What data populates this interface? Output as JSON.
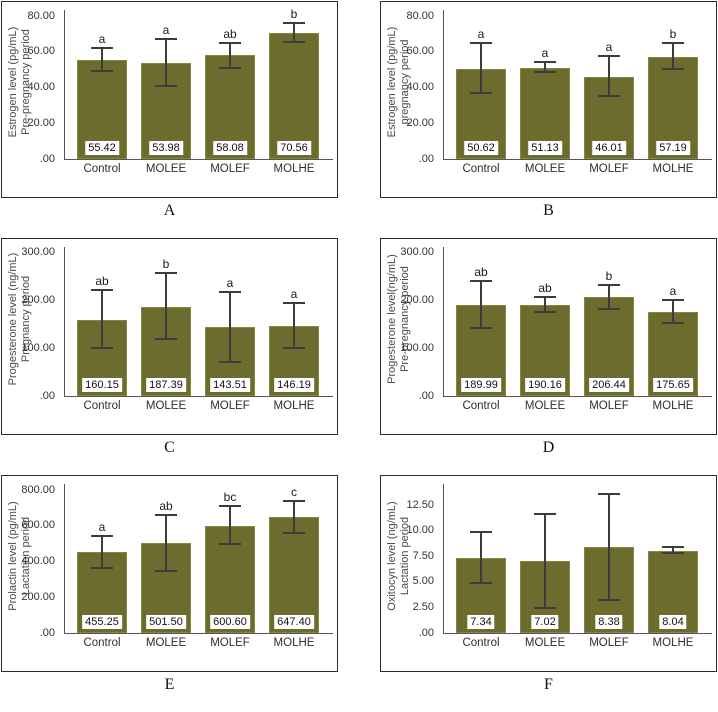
{
  "figure": {
    "bar_color": "#6b6c2e",
    "bar_border_color": "#85873f",
    "error_bar_color": "#3c3c3c",
    "axis_color": "#555555",
    "panel_border_color": "#2b2b2b",
    "value_label_bg": "#ffffff",
    "grid": false,
    "legend": false,
    "panel_letters": [
      "A",
      "B",
      "C",
      "D",
      "E",
      "F"
    ]
  },
  "chart_data": [
    {
      "type": "bar",
      "panel": "A",
      "title": "",
      "xlabel": "",
      "ylabel": "Estrogen level (pg/mL) Pre-pregnancy period",
      "ylabel_lines": [
        "Estrogen level (pg/mL)",
        "Pre-pregnancy period"
      ],
      "categories": [
        "Control",
        "MOLEE",
        "MOLEF",
        "MOLHE"
      ],
      "values": [
        55.42,
        53.98,
        58.08,
        70.56
      ],
      "value_labels": [
        "55.42",
        "53.98",
        "58.08",
        "70.56"
      ],
      "sig_letters": [
        "a",
        "a",
        "ab",
        "b"
      ],
      "error_low": [
        49.5,
        41.0,
        51.0,
        65.5
      ],
      "error_high": [
        62.0,
        67.0,
        65.0,
        76.0
      ],
      "ytick_labels": [
        ".00",
        "20.00",
        "40.00",
        "60.00",
        "80.00"
      ],
      "ytick_values": [
        0,
        20,
        40,
        60,
        80
      ],
      "ylim": [
        0,
        83.5
      ]
    },
    {
      "type": "bar",
      "panel": "B",
      "title": "",
      "xlabel": "",
      "ylabel": "Estrogen level (pg/mL) pregnancy period",
      "ylabel_lines": [
        "Estrogen level (pg/mL)",
        "pregnancy period"
      ],
      "categories": [
        "Control",
        "MOLEE",
        "MOLEF",
        "MOLHE"
      ],
      "values": [
        50.62,
        51.13,
        46.01,
        57.19
      ],
      "value_labels": [
        "50.62",
        "51.13",
        "46.01",
        "57.19"
      ],
      "sig_letters": [
        "a",
        "a",
        "a",
        "b"
      ],
      "error_low": [
        37.0,
        48.5,
        35.5,
        50.5
      ],
      "error_high": [
        65.0,
        54.5,
        57.5,
        65.0
      ],
      "ytick_labels": [
        ".00",
        "20.00",
        "40.00",
        "60.00",
        "80.00"
      ],
      "ytick_values": [
        0,
        20,
        40,
        60,
        80
      ],
      "ylim": [
        0,
        83.5
      ]
    },
    {
      "type": "bar",
      "panel": "C",
      "title": "",
      "xlabel": "",
      "ylabel": "Progesterone level (ng/mL) Pregnancy period",
      "ylabel_lines": [
        "Progesterone level (ng/mL)",
        "Pregnancy period"
      ],
      "categories": [
        "Control",
        "MOLEE",
        "MOLEF",
        "MOLHE"
      ],
      "values": [
        160.15,
        187.39,
        143.51,
        146.19
      ],
      "value_labels": [
        "160.15",
        "187.39",
        "143.51",
        "146.19"
      ],
      "sig_letters": [
        "ab",
        "b",
        "a",
        "a"
      ],
      "error_low": [
        100.0,
        120.0,
        72.0,
        100.0
      ],
      "error_high": [
        222.0,
        257.0,
        217.0,
        194.0
      ],
      "ytick_labels": [
        ".00",
        "100.00",
        "200.00",
        "300.00"
      ],
      "ytick_values": [
        0,
        100,
        200,
        300
      ],
      "ylim": [
        0,
        312
      ]
    },
    {
      "type": "bar",
      "panel": "D",
      "title": "",
      "xlabel": "",
      "ylabel": "Progesterone level(ng/mL) Pre-pregnancy period",
      "ylabel_lines": [
        "Progesterone level(ng/mL)",
        "Pre-pregnancy period"
      ],
      "categories": [
        "Control",
        "MOLEE",
        "MOLEF",
        "MOLHE"
      ],
      "values": [
        189.99,
        190.16,
        206.44,
        175.65
      ],
      "value_labels": [
        "189.99",
        "190.16",
        "206.44",
        "175.65"
      ],
      "sig_letters": [
        "ab",
        "ab",
        "b",
        "a"
      ],
      "error_low": [
        143.0,
        175.0,
        182.0,
        153.0
      ],
      "error_high": [
        240.0,
        208.0,
        233.0,
        202.0
      ],
      "ytick_labels": [
        ".00",
        "100.00",
        "200.00",
        "300.00"
      ],
      "ytick_values": [
        0,
        100,
        200,
        300
      ],
      "ylim": [
        0,
        312
      ]
    },
    {
      "type": "bar",
      "panel": "E",
      "title": "",
      "xlabel": "",
      "ylabel": "Prolactin level (pg/mL) Lactation period",
      "ylabel_lines": [
        "Prolactin level (pg/mL)",
        "Lactation period"
      ],
      "categories": [
        "Control",
        "MOLEE",
        "MOLEF",
        "MOLHE"
      ],
      "values": [
        455.25,
        501.5,
        600.6,
        647.4
      ],
      "value_labels": [
        "455.25",
        "501.50",
        "600.60",
        "647.40"
      ],
      "sig_letters": [
        "a",
        "ab",
        "bc",
        "c"
      ],
      "error_low": [
        365.0,
        345.0,
        500.0,
        558.0
      ],
      "error_high": [
        545.0,
        660.0,
        710.0,
        738.0
      ],
      "ytick_labels": [
        ".00",
        "200.00",
        "400.00",
        "600.00",
        "800.00"
      ],
      "ytick_values": [
        0,
        200,
        400,
        600,
        800
      ],
      "ylim": [
        0,
        834
      ]
    },
    {
      "type": "bar",
      "panel": "F",
      "title": "",
      "xlabel": "",
      "ylabel": "Oxitocyn level (ng/mL) Lactation period",
      "ylabel_lines": [
        "Oxitocyn level (ng/mL)",
        "Lactation period"
      ],
      "categories": [
        "Control",
        "MOLEE",
        "MOLEF",
        "MOLHE"
      ],
      "values": [
        7.34,
        7.02,
        8.38,
        8.04
      ],
      "value_labels": [
        "7.34",
        "7.02",
        "8.38",
        "8.04"
      ],
      "sig_letters": null,
      "error_low": [
        4.9,
        2.45,
        3.2,
        7.8
      ],
      "error_high": [
        9.9,
        11.65,
        13.6,
        8.4
      ],
      "ytick_labels": [
        ".00",
        "2.50",
        "5.00",
        "7.50",
        "10.00",
        "12.50"
      ],
      "ytick_values": [
        0,
        2.5,
        5,
        7.5,
        10,
        12.5
      ],
      "ylim": [
        0,
        14.6
      ]
    }
  ]
}
